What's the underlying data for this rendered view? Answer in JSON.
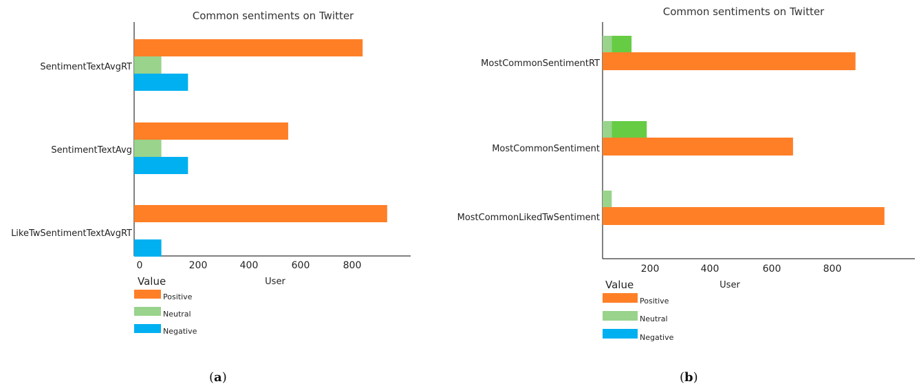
{
  "colors": {
    "positive": "#FF7F27",
    "neutral": "#99D38C",
    "negative": "#00B0F0",
    "neutral_bright": "#66CC44"
  },
  "chart_data": [
    {
      "type": "bar",
      "orientation": "horizontal",
      "title": "Common sentiments on Twitter",
      "xlabel": "User",
      "legend_title": "Value",
      "legend_position": "bottom-left",
      "categories": [
        "SentimentTextAvgRT",
        "SentimentTextAvg",
        "LikeTwSentimentTextAvgRT"
      ],
      "xticks": [
        "0",
        "200",
        "400",
        "600",
        "800"
      ],
      "xlim": [
        0,
        900
      ],
      "series": [
        {
          "name": "Positive",
          "values": [
            755,
            509,
            836
          ]
        },
        {
          "name": "Neutral",
          "values": [
            90,
            90,
            null
          ]
        },
        {
          "name": "Negative",
          "values": [
            178,
            178,
            90
          ]
        }
      ],
      "caption_letter": "a"
    },
    {
      "type": "bar",
      "orientation": "horizontal",
      "stacked_secondary": true,
      "title": "Common sentiments on Twitter",
      "xlabel": "User",
      "legend_title": "Value",
      "legend_position": "bottom-left",
      "categories": [
        "MostCommonSentimentRT",
        "MostCommonSentiment",
        "MostCommonLikedTwSentiment"
      ],
      "xticks": [
        "200",
        "400",
        "600",
        "800"
      ],
      "xlim": [
        0,
        1000
      ],
      "series": [
        {
          "name": "Positive",
          "values": [
            830,
            625,
            925
          ]
        },
        {
          "name": "Neutral",
          "values": [
            30,
            30,
            30
          ]
        },
        {
          "name": "Negative",
          "values": [
            65,
            115,
            null
          ]
        }
      ],
      "caption_letter": "b"
    }
  ]
}
